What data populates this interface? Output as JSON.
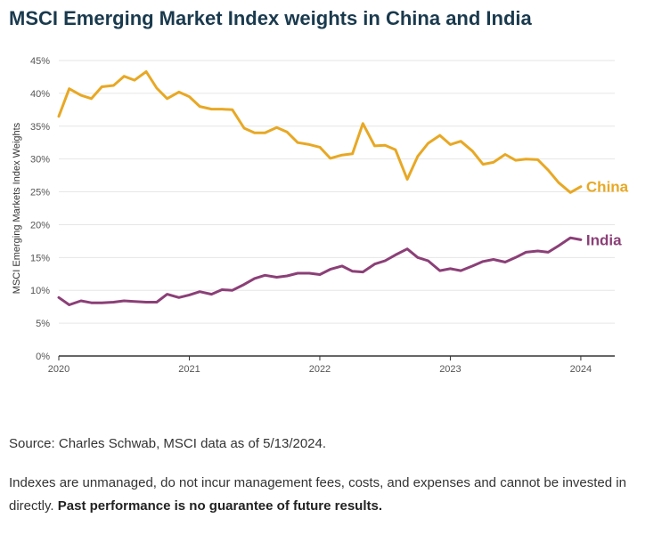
{
  "title": "MSCI Emerging Market Index weights in China and India",
  "source": "Source: Charles Schwab, MSCI data as of 5/13/2024.",
  "note": {
    "text": "Indexes are unmanaged, do not incur management fees, costs, and expenses and cannot be invested in directly.",
    "emphasis": "Past performance is no guarantee of future results."
  },
  "colors": {
    "china": "#e8a824",
    "india": "#8b3f77",
    "grid": "#e6e6e6",
    "axis": "#333333",
    "text": "#555555"
  },
  "chart_data": {
    "type": "line",
    "title": "",
    "xlabel": "",
    "ylabel": "MSCI Emerging Markets Index Weights",
    "x_ticks": [
      "2020",
      "2021",
      "2022",
      "2023",
      "2024"
    ],
    "y_ticks": [
      "0%",
      "5%",
      "10%",
      "15%",
      "20%",
      "25%",
      "30%",
      "35%",
      "40%",
      "45%"
    ],
    "xlim": [
      2020,
      2024.26
    ],
    "ylim": [
      0,
      45
    ],
    "grid": true,
    "series": [
      {
        "name": "China",
        "color_key": "china",
        "points": [
          [
            2020.0,
            36.5
          ],
          [
            2020.08,
            40.7
          ],
          [
            2020.17,
            39.7
          ],
          [
            2020.25,
            39.2
          ],
          [
            2020.33,
            41.0
          ],
          [
            2020.42,
            41.2
          ],
          [
            2020.5,
            42.6
          ],
          [
            2020.58,
            42.0
          ],
          [
            2020.67,
            43.3
          ],
          [
            2020.75,
            40.8
          ],
          [
            2020.83,
            39.2
          ],
          [
            2020.92,
            40.2
          ],
          [
            2021.0,
            39.5
          ],
          [
            2021.08,
            38.0
          ],
          [
            2021.17,
            37.6
          ],
          [
            2021.25,
            37.6
          ],
          [
            2021.33,
            37.5
          ],
          [
            2021.42,
            34.7
          ],
          [
            2021.5,
            34.0
          ],
          [
            2021.58,
            34.0
          ],
          [
            2021.67,
            34.8
          ],
          [
            2021.75,
            34.1
          ],
          [
            2021.83,
            32.5
          ],
          [
            2021.92,
            32.2
          ],
          [
            2022.0,
            31.8
          ],
          [
            2022.08,
            30.1
          ],
          [
            2022.17,
            30.6
          ],
          [
            2022.25,
            30.8
          ],
          [
            2022.33,
            35.4
          ],
          [
            2022.42,
            32.0
          ],
          [
            2022.5,
            32.1
          ],
          [
            2022.58,
            31.4
          ],
          [
            2022.67,
            26.9
          ],
          [
            2022.75,
            30.4
          ],
          [
            2022.83,
            32.4
          ],
          [
            2022.92,
            33.6
          ],
          [
            2023.0,
            32.2
          ],
          [
            2023.08,
            32.7
          ],
          [
            2023.17,
            31.2
          ],
          [
            2023.25,
            29.2
          ],
          [
            2023.33,
            29.5
          ],
          [
            2023.42,
            30.7
          ],
          [
            2023.5,
            29.8
          ],
          [
            2023.58,
            30.0
          ],
          [
            2023.67,
            29.9
          ],
          [
            2023.75,
            28.3
          ],
          [
            2023.83,
            26.4
          ],
          [
            2023.92,
            24.9
          ],
          [
            2024.0,
            25.8
          ]
        ]
      },
      {
        "name": "India",
        "color_key": "india",
        "points": [
          [
            2020.0,
            8.9
          ],
          [
            2020.08,
            7.8
          ],
          [
            2020.17,
            8.4
          ],
          [
            2020.25,
            8.1
          ],
          [
            2020.33,
            8.1
          ],
          [
            2020.42,
            8.2
          ],
          [
            2020.5,
            8.4
          ],
          [
            2020.58,
            8.3
          ],
          [
            2020.67,
            8.2
          ],
          [
            2020.75,
            8.2
          ],
          [
            2020.83,
            9.4
          ],
          [
            2020.92,
            8.9
          ],
          [
            2021.0,
            9.3
          ],
          [
            2021.08,
            9.8
          ],
          [
            2021.17,
            9.4
          ],
          [
            2021.25,
            10.1
          ],
          [
            2021.33,
            10.0
          ],
          [
            2021.42,
            10.9
          ],
          [
            2021.5,
            11.8
          ],
          [
            2021.58,
            12.3
          ],
          [
            2021.67,
            12.0
          ],
          [
            2021.75,
            12.2
          ],
          [
            2021.83,
            12.6
          ],
          [
            2021.92,
            12.6
          ],
          [
            2022.0,
            12.4
          ],
          [
            2022.08,
            13.2
          ],
          [
            2022.17,
            13.7
          ],
          [
            2022.25,
            12.9
          ],
          [
            2022.33,
            12.8
          ],
          [
            2022.42,
            14.0
          ],
          [
            2022.5,
            14.5
          ],
          [
            2022.58,
            15.4
          ],
          [
            2022.67,
            16.3
          ],
          [
            2022.75,
            15.0
          ],
          [
            2022.83,
            14.5
          ],
          [
            2022.92,
            13.0
          ],
          [
            2023.0,
            13.3
          ],
          [
            2023.08,
            13.0
          ],
          [
            2023.17,
            13.7
          ],
          [
            2023.25,
            14.4
          ],
          [
            2023.33,
            14.7
          ],
          [
            2023.42,
            14.3
          ],
          [
            2023.5,
            15.0
          ],
          [
            2023.58,
            15.8
          ],
          [
            2023.67,
            16.0
          ],
          [
            2023.75,
            15.8
          ],
          [
            2023.83,
            16.8
          ],
          [
            2023.92,
            18.0
          ],
          [
            2024.0,
            17.7
          ]
        ]
      }
    ]
  }
}
